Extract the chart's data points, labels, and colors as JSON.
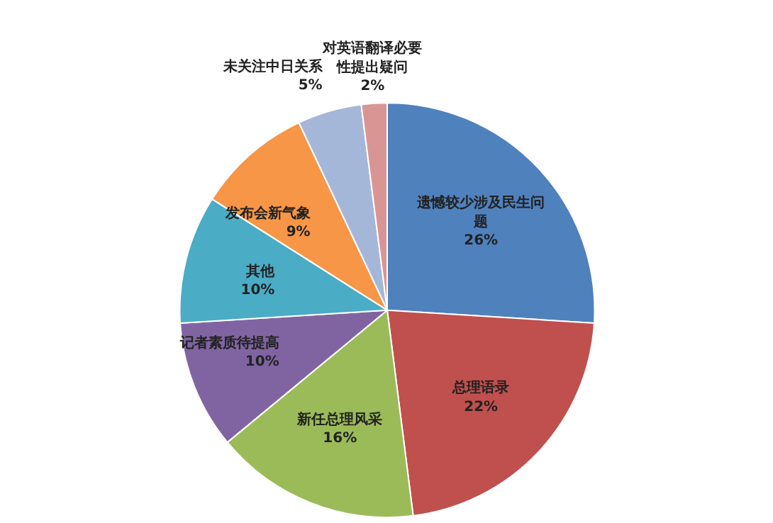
{
  "chart_data": {
    "type": "pie",
    "categories": [
      "遗憾较少涉及民生问题",
      "总理语录",
      "新任总理风采",
      "记者素质待提高",
      "其他",
      "发布会新气象",
      "未关注中日关系",
      "对英语翻译必要性提出疑问"
    ],
    "values": [
      26,
      22,
      16,
      10,
      10,
      9,
      5,
      2
    ],
    "colors": [
      "#4f81bd",
      "#c0504d",
      "#9bbb59",
      "#8064a2",
      "#4bacc6",
      "#f79646",
      "#a5b7d9",
      "#d99594"
    ],
    "data_labels": true,
    "value_labels": [
      "26%",
      "22%",
      "16%",
      "10%",
      "10%",
      "9%",
      "5%",
      "2%"
    ]
  }
}
